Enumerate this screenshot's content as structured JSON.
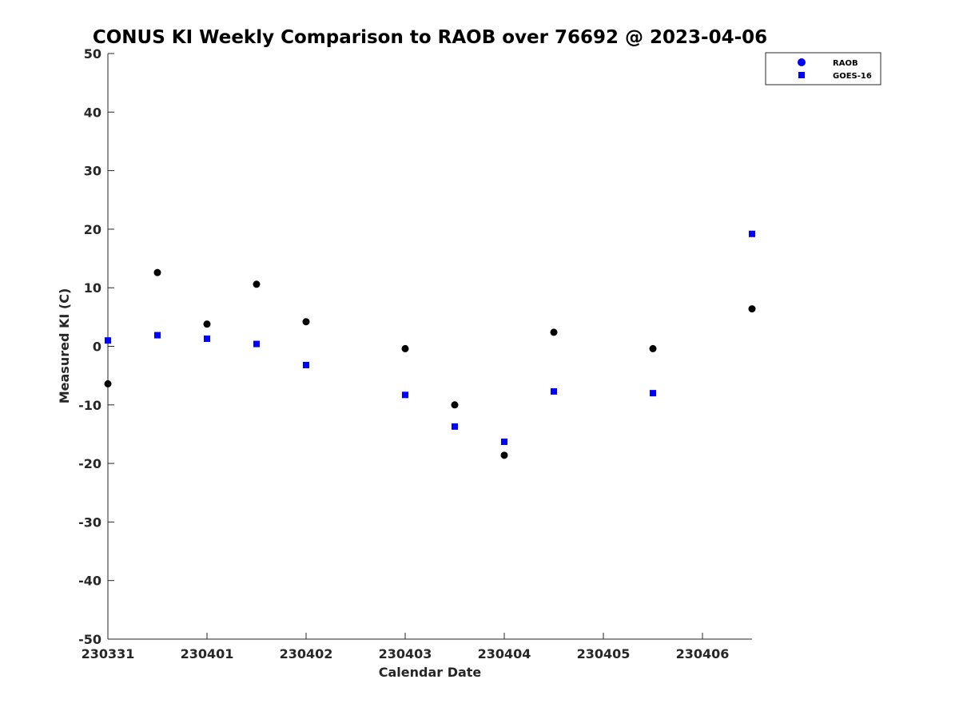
{
  "chart_data": {
    "type": "scatter",
    "title": "CONUS KI Weekly Comparison to RAOB over 76692 @ 2023-04-06",
    "xlabel": "Calendar Date",
    "ylabel": "Measured KI (C)",
    "xlim": [
      "2023-03-31 00:00",
      "2023-04-06 12:00"
    ],
    "ylim": [
      -50,
      50
    ],
    "x_ticks": [
      "230331",
      "230401",
      "230402",
      "230403",
      "230404",
      "230405",
      "230406"
    ],
    "y_ticks": [
      -50,
      -40,
      -30,
      -20,
      -10,
      0,
      10,
      20,
      30,
      40,
      50
    ],
    "grid": false,
    "legend_position": "top-right",
    "series": [
      {
        "name": "RAOB",
        "marker": "circle",
        "color": "#000000",
        "legend_color": "#0000ff",
        "points": [
          {
            "x": "2023-03-31 00:00",
            "y": -6.4
          },
          {
            "x": "2023-03-31 12:00",
            "y": 12.6
          },
          {
            "x": "2023-04-01 00:00",
            "y": 3.8
          },
          {
            "x": "2023-04-01 12:00",
            "y": 10.6
          },
          {
            "x": "2023-04-02 00:00",
            "y": 4.2
          },
          {
            "x": "2023-04-03 00:00",
            "y": -0.4
          },
          {
            "x": "2023-04-03 12:00",
            "y": -10.0
          },
          {
            "x": "2023-04-04 00:00",
            "y": -18.6
          },
          {
            "x": "2023-04-04 12:00",
            "y": 2.4
          },
          {
            "x": "2023-04-05 12:00",
            "y": -0.4
          },
          {
            "x": "2023-04-06 12:00",
            "y": 6.4
          }
        ]
      },
      {
        "name": "GOES-16",
        "marker": "square",
        "color": "#0000ff",
        "points": [
          {
            "x": "2023-03-31 00:00",
            "y": 1.0
          },
          {
            "x": "2023-03-31 12:00",
            "y": 1.9
          },
          {
            "x": "2023-04-01 00:00",
            "y": 1.3
          },
          {
            "x": "2023-04-01 12:00",
            "y": 0.4
          },
          {
            "x": "2023-04-02 00:00",
            "y": -3.2
          },
          {
            "x": "2023-04-03 00:00",
            "y": -8.3
          },
          {
            "x": "2023-04-03 12:00",
            "y": -13.7
          },
          {
            "x": "2023-04-04 00:00",
            "y": -16.3
          },
          {
            "x": "2023-04-04 12:00",
            "y": -7.7
          },
          {
            "x": "2023-04-05 12:00",
            "y": -8.0
          },
          {
            "x": "2023-04-06 12:00",
            "y": 19.2
          }
        ]
      }
    ]
  }
}
